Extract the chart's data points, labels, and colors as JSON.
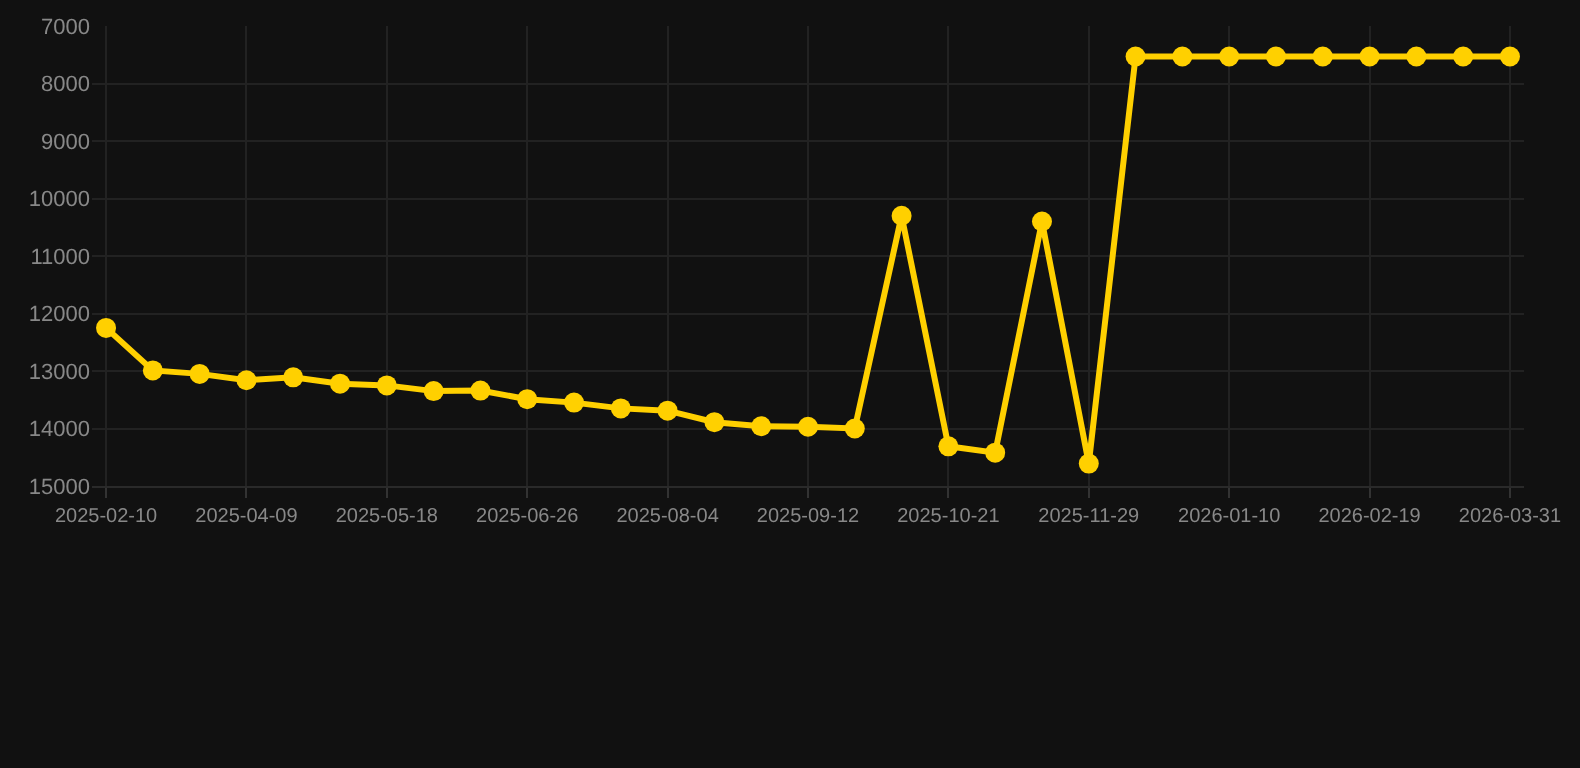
{
  "chart_data": {
    "type": "line",
    "categories": [
      "2025-02-10",
      null,
      null,
      "2025-04-09",
      null,
      null,
      "2025-05-18",
      null,
      null,
      "2025-06-26",
      null,
      null,
      "2025-08-04",
      null,
      null,
      "2025-09-12",
      null,
      null,
      "2025-10-21",
      null,
      null,
      "2025-11-29",
      null,
      null,
      "2026-01-10",
      null,
      null,
      "2026-02-19",
      null,
      null,
      "2026-03-31"
    ],
    "series": [
      {
        "color": "#ffd000",
        "values": [
          12250,
          12990,
          13050,
          13160,
          13110,
          13220,
          13250,
          13350,
          13340,
          13490,
          13550,
          13650,
          13690,
          13890,
          13960,
          13970,
          14000,
          10300,
          14310,
          14420,
          10400,
          14610,
          7530,
          7530,
          7530,
          7530,
          7530,
          7530,
          7530,
          7530,
          7530
        ]
      }
    ],
    "ylim": [
      15000,
      7000
    ],
    "yticks": [
      7000,
      8000,
      9000,
      10000,
      11000,
      12000,
      13000,
      14000,
      15000
    ],
    "grid": true,
    "marker": "circle",
    "line_style": "solid"
  }
}
